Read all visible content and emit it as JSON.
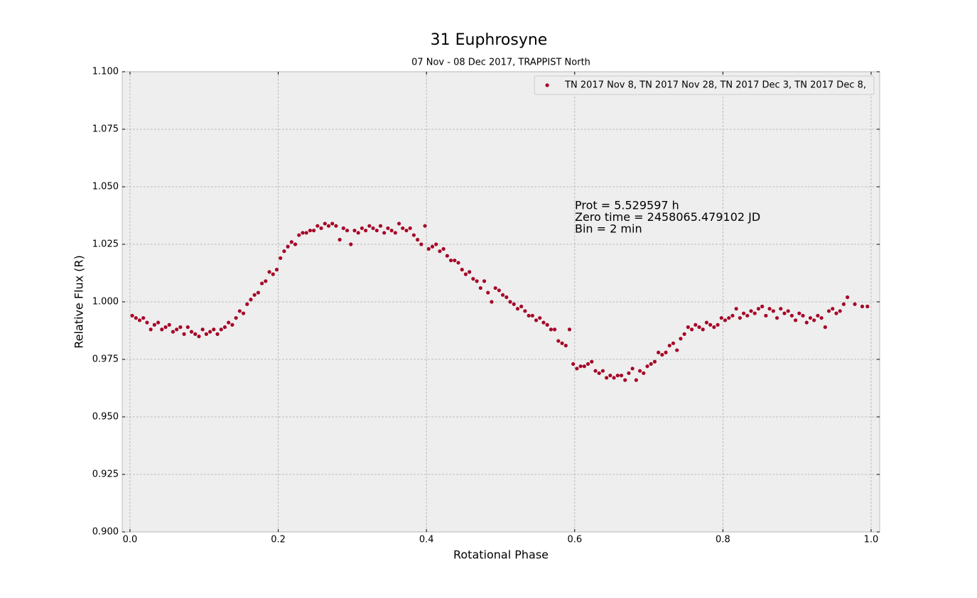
{
  "chart_data": {
    "type": "scatter",
    "title": "31 Euphrosyne",
    "subtitle": "07 Nov - 08 Dec 2017, TRAPPIST North",
    "x_label": "Rotational Phase",
    "y_label": "Relative Flux (R)",
    "annotation": [
      "Prot = 5.529597 h",
      "Zero time = 2458065.479102 JD",
      "Bin = 2 min"
    ],
    "xlim": [
      -0.0105,
      1.0115
    ],
    "ylim": [
      0.9,
      1.1
    ],
    "xticks": [
      {
        "value": 0,
        "label": "0.0"
      },
      0.2,
      0.4,
      0.6,
      0.8,
      {
        "value": 1,
        "label": "1.0"
      }
    ],
    "yticks": [
      {
        "value": 0.9,
        "label": "0.900"
      },
      0.925,
      {
        "value": 0.95,
        "label": "0.950"
      },
      0.975,
      {
        "value": 1,
        "label": "1.000"
      },
      1.025,
      {
        "value": 1.05,
        "label": "1.050"
      },
      1.075,
      {
        "value": 1.1,
        "label": "1.100"
      }
    ],
    "grid": true,
    "legend": "upper right",
    "x": [
      0.003,
      0.008,
      0.013,
      0.018,
      0.023,
      0.028,
      0.033,
      0.038,
      0.043,
      0.048,
      0.053,
      0.058,
      0.063,
      0.068,
      0.073,
      0.078,
      0.083,
      0.088,
      0.093,
      0.098,
      0.103,
      0.108,
      0.113,
      0.118,
      0.123,
      0.128,
      0.133,
      0.138,
      0.143,
      0.148,
      0.153,
      0.158,
      0.163,
      0.168,
      0.173,
      0.178,
      0.183,
      0.188,
      0.193,
      0.198,
      0.203,
      0.208,
      0.213,
      0.218,
      0.223,
      0.228,
      0.233,
      0.238,
      0.243,
      0.248,
      0.253,
      0.258,
      0.263,
      0.268,
      0.273,
      0.278,
      0.283,
      0.288,
      0.293,
      0.298,
      0.303,
      0.308,
      0.313,
      0.318,
      0.323,
      0.328,
      0.333,
      0.338,
      0.343,
      0.348,
      0.353,
      0.358,
      0.363,
      0.368,
      0.373,
      0.378,
      0.383,
      0.388,
      0.393,
      0.398,
      0.403,
      0.408,
      0.413,
      0.418,
      0.423,
      0.428,
      0.433,
      0.438,
      0.443,
      0.448,
      0.453,
      0.458,
      0.463,
      0.468,
      0.473,
      0.478,
      0.483,
      0.488,
      0.493,
      0.498,
      0.503,
      0.508,
      0.513,
      0.518,
      0.523,
      0.528,
      0.533,
      0.538,
      0.543,
      0.548,
      0.553,
      0.558,
      0.563,
      0.568,
      0.573,
      0.578,
      0.583,
      0.588,
      0.593,
      0.598,
      0.603,
      0.608,
      0.613,
      0.618,
      0.623,
      0.628,
      0.633,
      0.638,
      0.643,
      0.648,
      0.653,
      0.658,
      0.663,
      0.668,
      0.673,
      0.678,
      0.683,
      0.688,
      0.693,
      0.698,
      0.703,
      0.708,
      0.713,
      0.718,
      0.723,
      0.728,
      0.733,
      0.738,
      0.743,
      0.748,
      0.753,
      0.758,
      0.763,
      0.768,
      0.773,
      0.778,
      0.783,
      0.788,
      0.793,
      0.798,
      0.803,
      0.808,
      0.813,
      0.818,
      0.823,
      0.828,
      0.833,
      0.838,
      0.843,
      0.848,
      0.853,
      0.858,
      0.863,
      0.868,
      0.873,
      0.878,
      0.883,
      0.888,
      0.893,
      0.898,
      0.903,
      0.908,
      0.913,
      0.918,
      0.923,
      0.928,
      0.933,
      0.938,
      0.943,
      0.948,
      0.953,
      0.958,
      0.963,
      0.968,
      0.978,
      0.988,
      0.995
    ],
    "series": [
      {
        "name": "TN 2017 Nov 8, TN 2017 Nov 28, TN 2017 Dec 3, TN 2017 Dec 8,",
        "color": "#a60628",
        "values": [
          0.994,
          0.993,
          0.992,
          0.993,
          0.991,
          0.988,
          0.99,
          0.991,
          0.988,
          0.989,
          0.99,
          0.987,
          0.988,
          0.989,
          0.986,
          0.989,
          0.987,
          0.986,
          0.985,
          0.988,
          0.986,
          0.987,
          0.988,
          0.986,
          0.988,
          0.989,
          0.991,
          0.99,
          0.993,
          0.996,
          0.995,
          0.999,
          1.001,
          1.003,
          1.004,
          1.008,
          1.009,
          1.013,
          1.012,
          1.014,
          1.019,
          1.022,
          1.024,
          1.026,
          1.025,
          1.029,
          1.03,
          1.03,
          1.031,
          1.031,
          1.033,
          1.032,
          1.034,
          1.033,
          1.034,
          1.033,
          1.027,
          1.032,
          1.031,
          1.025,
          1.031,
          1.03,
          1.032,
          1.031,
          1.033,
          1.032,
          1.031,
          1.033,
          1.03,
          1.032,
          1.031,
          1.03,
          1.034,
          1.032,
          1.031,
          1.032,
          1.029,
          1.027,
          1.025,
          1.033,
          1.023,
          1.024,
          1.025,
          1.022,
          1.023,
          1.02,
          1.018,
          1.018,
          1.017,
          1.014,
          1.012,
          1.013,
          1.01,
          1.009,
          1.006,
          1.009,
          1.004,
          1.0,
          1.006,
          1.005,
          1.003,
          1.002,
          1.0,
          0.999,
          0.997,
          0.998,
          0.996,
          0.994,
          0.994,
          0.992,
          0.993,
          0.991,
          0.99,
          0.988,
          0.988,
          0.983,
          0.982,
          0.981,
          0.988,
          0.973,
          0.971,
          0.972,
          0.972,
          0.973,
          0.974,
          0.97,
          0.969,
          0.97,
          0.967,
          0.968,
          0.967,
          0.968,
          0.968,
          0.966,
          0.969,
          0.971,
          0.966,
          0.97,
          0.969,
          0.972,
          0.973,
          0.974,
          0.978,
          0.977,
          0.978,
          0.981,
          0.982,
          0.979,
          0.984,
          0.986,
          0.989,
          0.988,
          0.99,
          0.989,
          0.988,
          0.991,
          0.99,
          0.989,
          0.99,
          0.993,
          0.992,
          0.993,
          0.994,
          0.997,
          0.993,
          0.995,
          0.994,
          0.996,
          0.995,
          0.997,
          0.998,
          0.994,
          0.997,
          0.996,
          0.993,
          0.997,
          0.995,
          0.996,
          0.994,
          0.992,
          0.995,
          0.994,
          0.991,
          0.993,
          0.992,
          0.994,
          0.993,
          0.989,
          0.996,
          0.997,
          0.995,
          0.996,
          0.999,
          1.002,
          0.999,
          0.998,
          0.998
        ]
      }
    ]
  }
}
